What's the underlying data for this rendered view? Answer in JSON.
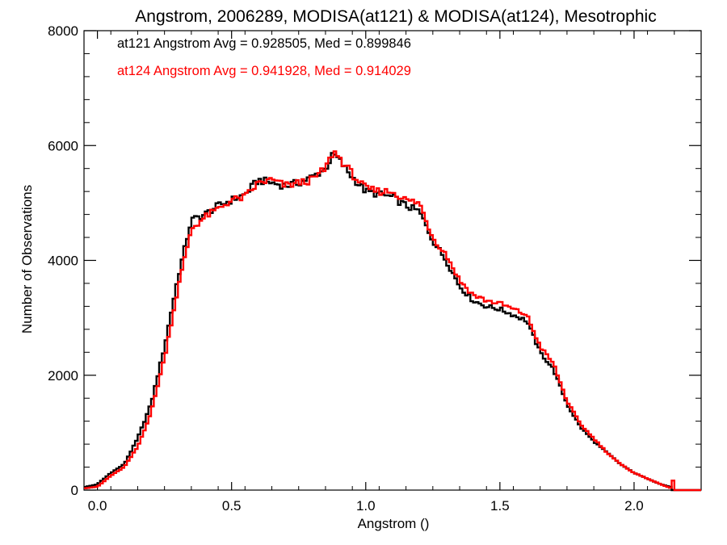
{
  "chart_data": {
    "type": "histogram-step",
    "title": "Angstrom, 2006289, MODISA(at121) & MODISA(at124), Mesotrophic",
    "xlabel": "Angstrom ()",
    "ylabel": "Number of Observations",
    "xlim": [
      -0.05,
      2.25
    ],
    "ylim": [
      0,
      8000
    ],
    "x_ticks": [
      0.0,
      0.5,
      1.0,
      1.5,
      2.0
    ],
    "x_tick_labels": [
      "0.0",
      "0.5",
      "1.0",
      "1.5",
      "2.0"
    ],
    "y_ticks": [
      0,
      2000,
      4000,
      6000,
      8000
    ],
    "y_tick_labels": [
      "0",
      "2000",
      "4000",
      "6000",
      "8000"
    ],
    "grid": false,
    "legend_position": "top-left",
    "bin_width": 0.01,
    "series": [
      {
        "name": "at121",
        "color": "#000000",
        "legend_text": "at121 Angstrom Avg = 0.928505, Med = 0.899846",
        "points": [
          [
            -0.05,
            50
          ],
          [
            0.0,
            100
          ],
          [
            0.05,
            300
          ],
          [
            0.1,
            450
          ],
          [
            0.15,
            900
          ],
          [
            0.2,
            1500
          ],
          [
            0.25,
            2500
          ],
          [
            0.3,
            3700
          ],
          [
            0.35,
            4700
          ],
          [
            0.4,
            4800
          ],
          [
            0.45,
            4950
          ],
          [
            0.5,
            5050
          ],
          [
            0.55,
            5150
          ],
          [
            0.6,
            5400
          ],
          [
            0.65,
            5350
          ],
          [
            0.7,
            5300
          ],
          [
            0.75,
            5350
          ],
          [
            0.8,
            5450
          ],
          [
            0.85,
            5600
          ],
          [
            0.88,
            5850
          ],
          [
            0.9,
            5750
          ],
          [
            0.95,
            5450
          ],
          [
            1.0,
            5200
          ],
          [
            1.05,
            5150
          ],
          [
            1.1,
            5100
          ],
          [
            1.15,
            4950
          ],
          [
            1.2,
            4850
          ],
          [
            1.25,
            4350
          ],
          [
            1.3,
            4000
          ],
          [
            1.35,
            3550
          ],
          [
            1.4,
            3300
          ],
          [
            1.45,
            3200
          ],
          [
            1.5,
            3150
          ],
          [
            1.55,
            3050
          ],
          [
            1.6,
            2950
          ],
          [
            1.65,
            2400
          ],
          [
            1.7,
            2100
          ],
          [
            1.75,
            1500
          ],
          [
            1.8,
            1100
          ],
          [
            1.85,
            850
          ],
          [
            1.9,
            650
          ],
          [
            1.95,
            450
          ],
          [
            2.0,
            300
          ],
          [
            2.05,
            200
          ],
          [
            2.1,
            100
          ],
          [
            2.14,
            50
          ]
        ]
      },
      {
        "name": "at124",
        "color": "#ff0000",
        "legend_text": "at124 Angstrom Avg = 0.941928, Med = 0.914029",
        "points": [
          [
            -0.05,
            30
          ],
          [
            0.0,
            60
          ],
          [
            0.05,
            250
          ],
          [
            0.1,
            400
          ],
          [
            0.15,
            750
          ],
          [
            0.2,
            1350
          ],
          [
            0.25,
            2300
          ],
          [
            0.3,
            3500
          ],
          [
            0.35,
            4550
          ],
          [
            0.4,
            4750
          ],
          [
            0.45,
            4900
          ],
          [
            0.5,
            5050
          ],
          [
            0.55,
            5100
          ],
          [
            0.6,
            5350
          ],
          [
            0.65,
            5400
          ],
          [
            0.7,
            5300
          ],
          [
            0.75,
            5350
          ],
          [
            0.8,
            5400
          ],
          [
            0.85,
            5600
          ],
          [
            0.88,
            5900
          ],
          [
            0.9,
            5800
          ],
          [
            0.95,
            5500
          ],
          [
            1.0,
            5250
          ],
          [
            1.05,
            5200
          ],
          [
            1.1,
            5200
          ],
          [
            1.15,
            5050
          ],
          [
            1.2,
            5000
          ],
          [
            1.25,
            4400
          ],
          [
            1.3,
            4100
          ],
          [
            1.35,
            3650
          ],
          [
            1.4,
            3400
          ],
          [
            1.45,
            3300
          ],
          [
            1.5,
            3250
          ],
          [
            1.55,
            3150
          ],
          [
            1.6,
            3050
          ],
          [
            1.65,
            2500
          ],
          [
            1.7,
            2200
          ],
          [
            1.75,
            1550
          ],
          [
            1.8,
            1150
          ],
          [
            1.85,
            900
          ],
          [
            1.9,
            650
          ],
          [
            1.95,
            450
          ],
          [
            2.0,
            300
          ],
          [
            2.05,
            200
          ],
          [
            2.1,
            100
          ],
          [
            2.14,
            30
          ],
          [
            2.15,
            300
          ]
        ]
      }
    ]
  }
}
